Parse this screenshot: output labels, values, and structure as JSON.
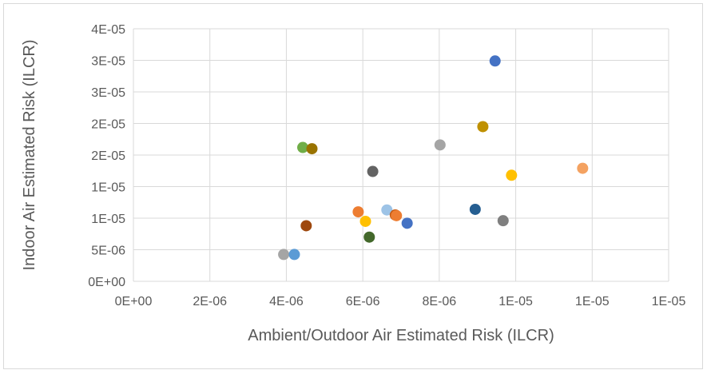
{
  "chart_data": {
    "type": "scatter",
    "title": "",
    "xlabel": "Ambient/Outdoor Air Estimated Risk (ILCR)",
    "ylabel": "Indoor Air Estimated Risk (ILCR)",
    "xlim": [
      0,
      1.4e-05
    ],
    "ylim": [
      0,
      4e-05
    ],
    "x_ticks": [
      0,
      2e-06,
      4e-06,
      6e-06,
      8e-06,
      1e-05,
      1.2e-05,
      1.4e-05
    ],
    "x_tick_labels": [
      "0E+00",
      "2E-06",
      "4E-06",
      "6E-06",
      "8E-06",
      "1E-05",
      "1E-05",
      "1E-05"
    ],
    "y_ticks": [
      0,
      5e-06,
      1e-05,
      1.5e-05,
      2e-05,
      2.5e-05,
      3e-05,
      3.5e-05,
      4e-05
    ],
    "y_tick_labels": [
      "0E+00",
      "5E-06",
      "1E-05",
      "1E-05",
      "2E-05",
      "2E-05",
      "3E-05",
      "3E-05",
      "4E-05"
    ],
    "grid": true,
    "legend": "none",
    "points": [
      {
        "x": 3.93e-06,
        "y": 4.25e-06,
        "color": "#a5a5a5"
      },
      {
        "x": 4.21e-06,
        "y": 4.25e-06,
        "color": "#5b9bd5"
      },
      {
        "x": 4.43e-06,
        "y": 2.12e-05,
        "color": "#70ad47"
      },
      {
        "x": 4.67e-06,
        "y": 2.1e-05,
        "color": "#997300"
      },
      {
        "x": 4.52e-06,
        "y": 8.8e-06,
        "color": "#9e480e"
      },
      {
        "x": 5.88e-06,
        "y": 1.1e-05,
        "color": "#ed7d31"
      },
      {
        "x": 6.07e-06,
        "y": 9.5e-06,
        "color": "#ffc000"
      },
      {
        "x": 6.17e-06,
        "y": 7e-06,
        "color": "#43682b"
      },
      {
        "x": 6.26e-06,
        "y": 1.74e-05,
        "color": "#636363"
      },
      {
        "x": 6.63e-06,
        "y": 1.13e-05,
        "color": "#9dc3e6"
      },
      {
        "x": 6.85e-06,
        "y": 1.05e-05,
        "color": "#c55a11"
      },
      {
        "x": 6.88e-06,
        "y": 1.04e-05,
        "color": "#ed7d31"
      },
      {
        "x": 7.16e-06,
        "y": 9.2e-06,
        "color": "#4472c4"
      },
      {
        "x": 8.02e-06,
        "y": 2.16e-05,
        "color": "#a5a5a5"
      },
      {
        "x": 8.94e-06,
        "y": 1.14e-05,
        "color": "#255e91"
      },
      {
        "x": 9.14e-06,
        "y": 2.45e-05,
        "color": "#bf9000"
      },
      {
        "x": 9.46e-06,
        "y": 3.49e-05,
        "color": "#4472c4"
      },
      {
        "x": 9.67e-06,
        "y": 9.6e-06,
        "color": "#7f7f7f"
      },
      {
        "x": 9.89e-06,
        "y": 1.68e-05,
        "color": "#ffc000"
      },
      {
        "x": 1.175e-05,
        "y": 1.79e-05,
        "color": "#f4a261"
      }
    ]
  }
}
